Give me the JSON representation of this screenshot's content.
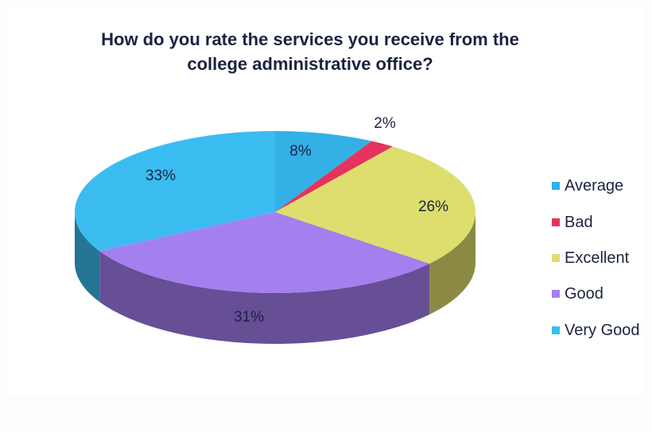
{
  "chart_data": {
    "type": "pie",
    "title": "How do you rate the services you receive from the college administrative office?",
    "title_lines": [
      "How do you rate the services you receive from the",
      "college administrative office?"
    ],
    "legend_position": "right",
    "slices": [
      {
        "label": "Average",
        "value": 8,
        "display": "8%",
        "color": "#33b0e6"
      },
      {
        "label": "Bad",
        "value": 2,
        "display": "2%",
        "color": "#e5335e"
      },
      {
        "label": "Excellent",
        "value": 26,
        "display": "26%",
        "color": "#dede6e"
      },
      {
        "label": "Good",
        "value": 31,
        "display": "31%",
        "color": "#a47ff0"
      },
      {
        "label": "Very Good",
        "value": 33,
        "display": "33%",
        "color": "#3bbcf0"
      }
    ]
  }
}
